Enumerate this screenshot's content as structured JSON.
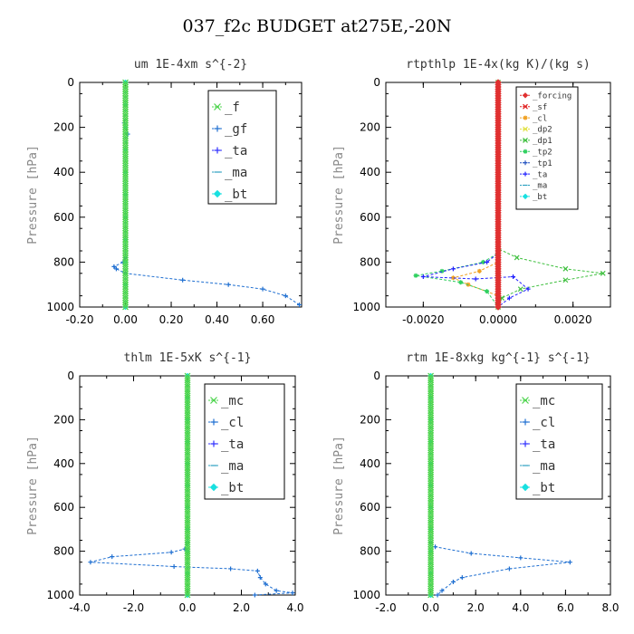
{
  "title": "037_f2c  BUDGET at275E,-20N",
  "chart_data": [
    {
      "type": "line",
      "title": "um  1E-4xm s^{-2}",
      "ylabel": "Pressure [hPa]",
      "xlim": [
        -0.2,
        0.77
      ],
      "ylim": [
        1000,
        0
      ],
      "xticks": [
        "-0.20",
        "0.00",
        "0.20",
        "0.40",
        "0.60"
      ],
      "xtick_values": [
        -0.2,
        0.0,
        0.2,
        0.4,
        0.6
      ],
      "yticks": [
        "0",
        "200",
        "400",
        "600",
        "800",
        "1000"
      ],
      "legend_position": "top-right",
      "series": [
        {
          "name": "_f",
          "color": "#4cd44c",
          "marker": "x",
          "x": [
            0,
            0,
            0,
            0,
            0,
            0,
            0,
            0,
            0,
            0,
            0
          ],
          "y": [
            0,
            100,
            200,
            300,
            400,
            500,
            600,
            700,
            800,
            900,
            1000
          ]
        },
        {
          "name": "_gf",
          "color": "#1f6fd1",
          "marker": "plus",
          "x": [
            0,
            0,
            -0.005,
            0.01,
            0,
            0,
            0,
            0,
            -0.01,
            -0.05,
            -0.04,
            0.0,
            0.25,
            0.45,
            0.6,
            0.7,
            0.76
          ],
          "y": [
            0,
            100,
            180,
            230,
            300,
            500,
            700,
            780,
            800,
            820,
            830,
            850,
            880,
            900,
            920,
            950,
            990
          ]
        },
        {
          "name": "_ta",
          "color": "#3030ff",
          "marker": "plus",
          "x": [
            0,
            0,
            0,
            0,
            0,
            0,
            0,
            0,
            0,
            0,
            0
          ],
          "y": [
            0,
            100,
            200,
            300,
            400,
            500,
            600,
            700,
            800,
            900,
            1000
          ]
        },
        {
          "name": "_ma",
          "color": "#2ca0c0",
          "marker": "dash",
          "x": [
            0,
            0,
            0,
            0,
            0,
            0,
            0,
            0,
            0,
            0,
            0
          ],
          "y": [
            0,
            100,
            200,
            300,
            400,
            500,
            600,
            700,
            800,
            900,
            1000
          ]
        },
        {
          "name": "_bt",
          "color": "#18e0e0",
          "marker": "diamond",
          "x": [
            0,
            0,
            0,
            0,
            0,
            0,
            0,
            0,
            0,
            0,
            0
          ],
          "y": [
            0,
            100,
            200,
            300,
            400,
            500,
            600,
            700,
            800,
            900,
            1000
          ]
        }
      ]
    },
    {
      "type": "line",
      "title": "rtpthlp  1E-4x(kg K)/(kg s)",
      "ylabel": "Pressure [hPa]",
      "xlim": [
        -0.003,
        0.003
      ],
      "ylim": [
        1000,
        0
      ],
      "xticks": [
        "-0.0020",
        "0.0000",
        "0.0020"
      ],
      "xtick_values": [
        -0.002,
        0.0,
        0.002
      ],
      "yticks": [
        "0",
        "200",
        "400",
        "600",
        "800",
        "1000"
      ],
      "legend_position": "top-right",
      "series": [
        {
          "name": "_forcing",
          "color": "#e03030",
          "marker": "diamond",
          "x": [
            0,
            0,
            0,
            0,
            0,
            0,
            0,
            0,
            0,
            0,
            0
          ],
          "y": [
            0,
            100,
            200,
            300,
            400,
            500,
            600,
            700,
            800,
            900,
            1000
          ]
        },
        {
          "name": "_sf",
          "color": "#e02020",
          "marker": "x",
          "x": [
            0,
            0,
            0,
            0,
            0,
            0,
            0,
            0,
            0,
            0,
            0
          ],
          "y": [
            0,
            100,
            200,
            300,
            400,
            500,
            600,
            700,
            800,
            900,
            1000
          ]
        },
        {
          "name": "_cl",
          "color": "#f0a020",
          "marker": "star",
          "x": [
            0,
            0,
            0,
            -0.0005,
            -0.0012,
            -0.0008,
            0,
            0
          ],
          "y": [
            0,
            700,
            800,
            840,
            870,
            900,
            950,
            1000
          ]
        },
        {
          "name": "_dp2",
          "color": "#e0e040",
          "marker": "x",
          "x": [
            0,
            0,
            0,
            0,
            0,
            0,
            0,
            0,
            0,
            0,
            0
          ],
          "y": [
            0,
            100,
            200,
            300,
            400,
            500,
            600,
            700,
            800,
            900,
            1000
          ]
        },
        {
          "name": "_dp1",
          "color": "#40c040",
          "marker": "x",
          "x": [
            0,
            0,
            0.0005,
            0.0018,
            0.0028,
            0.0018,
            0.0006,
            0.0001,
            0
          ],
          "y": [
            0,
            740,
            780,
            830,
            850,
            880,
            920,
            960,
            1000
          ]
        },
        {
          "name": "_tp2",
          "color": "#30d060",
          "marker": "star",
          "x": [
            0,
            0,
            -0.0004,
            -0.0015,
            -0.0022,
            -0.001,
            -0.0003,
            0
          ],
          "y": [
            0,
            760,
            800,
            840,
            860,
            890,
            930,
            1000
          ]
        },
        {
          "name": "_tp1",
          "color": "#2050c0",
          "marker": "plus",
          "x": [
            0,
            0,
            0,
            0,
            0,
            0,
            0,
            0,
            0,
            0,
            0
          ],
          "y": [
            0,
            100,
            200,
            300,
            400,
            500,
            600,
            700,
            800,
            900,
            1000
          ]
        },
        {
          "name": "_ta",
          "color": "#2020ff",
          "marker": "plus",
          "x": [
            0,
            0,
            -0.0003,
            -0.0012,
            -0.002,
            -0.0006,
            0.0004,
            0.0008,
            0.0003,
            0
          ],
          "y": [
            0,
            760,
            800,
            830,
            865,
            875,
            865,
            920,
            960,
            1000
          ]
        },
        {
          "name": "_ma",
          "color": "#2ca0c0",
          "marker": "dash",
          "x": [
            0,
            0,
            0,
            0,
            0,
            0,
            0,
            0,
            0,
            0,
            0
          ],
          "y": [
            0,
            100,
            200,
            300,
            400,
            500,
            600,
            700,
            800,
            900,
            1000
          ]
        },
        {
          "name": "_bt",
          "color": "#18e0e0",
          "marker": "diamond",
          "x": [
            0,
            0,
            0,
            0,
            0,
            0,
            0,
            0,
            0,
            0,
            0
          ],
          "y": [
            0,
            100,
            200,
            300,
            400,
            500,
            600,
            700,
            800,
            900,
            1000
          ]
        }
      ]
    },
    {
      "type": "line",
      "title": "thlm  1E-5xK s^{-1}",
      "ylabel": "Pressure [hPa]",
      "xlim": [
        -4.0,
        4.0
      ],
      "ylim": [
        1000,
        0
      ],
      "xticks": [
        "-4.0",
        "-2.0",
        "0.0",
        "2.0",
        "4.0"
      ],
      "xtick_values": [
        -4.0,
        -2.0,
        0.0,
        2.0,
        4.0
      ],
      "yticks": [
        "0",
        "200",
        "400",
        "600",
        "800",
        "1000"
      ],
      "legend_position": "top-right",
      "series": [
        {
          "name": "_mc",
          "color": "#4cd44c",
          "marker": "x",
          "x": [
            0,
            0,
            0,
            0,
            0,
            0,
            0,
            0,
            0,
            0,
            0
          ],
          "y": [
            0,
            100,
            200,
            300,
            400,
            500,
            600,
            700,
            800,
            900,
            1000
          ]
        },
        {
          "name": "_cl",
          "color": "#1f6fd1",
          "marker": "plus",
          "x": [
            0,
            0,
            -0.1,
            -0.6,
            -2.8,
            -3.6,
            -0.5,
            1.6,
            2.6,
            2.7,
            2.9,
            3.3,
            3.9,
            2.5
          ],
          "y": [
            0,
            760,
            790,
            805,
            825,
            850,
            870,
            880,
            890,
            920,
            950,
            980,
            990,
            1000
          ]
        },
        {
          "name": "_ta",
          "color": "#3030ff",
          "marker": "plus",
          "x": [
            0,
            0,
            0,
            0,
            0,
            0,
            0,
            0,
            0,
            0,
            0
          ],
          "y": [
            0,
            100,
            200,
            300,
            400,
            500,
            600,
            700,
            800,
            900,
            1000
          ]
        },
        {
          "name": "_ma",
          "color": "#2ca0c0",
          "marker": "dash",
          "x": [
            0,
            0,
            0,
            0,
            0,
            0,
            0,
            0,
            0,
            0,
            0
          ],
          "y": [
            0,
            100,
            200,
            300,
            400,
            500,
            600,
            700,
            800,
            900,
            1000
          ]
        },
        {
          "name": "_bt",
          "color": "#18e0e0",
          "marker": "diamond",
          "x": [
            0,
            0,
            0,
            0,
            0,
            0,
            0,
            0,
            0,
            0,
            0
          ],
          "y": [
            0,
            100,
            200,
            300,
            400,
            500,
            600,
            700,
            800,
            900,
            1000
          ]
        }
      ]
    },
    {
      "type": "line",
      "title": "rtm  1E-8xkg kg^{-1} s^{-1}",
      "ylabel": "Pressure [hPa]",
      "xlim": [
        -2.0,
        8.0
      ],
      "ylim": [
        1000,
        0
      ],
      "xticks": [
        "-2.0",
        "0.0",
        "2.0",
        "4.0",
        "6.0",
        "8.0"
      ],
      "xtick_values": [
        -2.0,
        0.0,
        2.0,
        4.0,
        6.0,
        8.0
      ],
      "yticks": [
        "0",
        "200",
        "400",
        "600",
        "800",
        "1000"
      ],
      "legend_position": "top-right",
      "series": [
        {
          "name": "_mc",
          "color": "#4cd44c",
          "marker": "x",
          "x": [
            0,
            0,
            0,
            0,
            0,
            0,
            0,
            0,
            0,
            0,
            0
          ],
          "y": [
            0,
            100,
            200,
            300,
            400,
            500,
            600,
            700,
            800,
            900,
            1000
          ]
        },
        {
          "name": "_cl",
          "color": "#1f6fd1",
          "marker": "plus",
          "x": [
            0,
            0,
            0.2,
            1.8,
            4.0,
            6.2,
            3.5,
            1.4,
            1.0,
            0.5,
            0.3
          ],
          "y": [
            0,
            760,
            780,
            810,
            830,
            850,
            880,
            920,
            940,
            980,
            1000
          ]
        },
        {
          "name": "_ta",
          "color": "#3030ff",
          "marker": "plus",
          "x": [
            0,
            0,
            0,
            0,
            0,
            0,
            0,
            0,
            0,
            0,
            0
          ],
          "y": [
            0,
            100,
            200,
            300,
            400,
            500,
            600,
            700,
            800,
            900,
            1000
          ]
        },
        {
          "name": "_ma",
          "color": "#2ca0c0",
          "marker": "dash",
          "x": [
            0,
            0,
            0,
            0,
            0,
            0,
            0,
            0,
            0,
            0,
            0
          ],
          "y": [
            0,
            100,
            200,
            300,
            400,
            500,
            600,
            700,
            800,
            900,
            1000
          ]
        },
        {
          "name": "_bt",
          "color": "#18e0e0",
          "marker": "diamond",
          "x": [
            0,
            0,
            0,
            0,
            0,
            0,
            0,
            0,
            0,
            0,
            0
          ],
          "y": [
            0,
            100,
            200,
            300,
            400,
            500,
            600,
            700,
            800,
            900,
            1000
          ]
        }
      ]
    }
  ]
}
